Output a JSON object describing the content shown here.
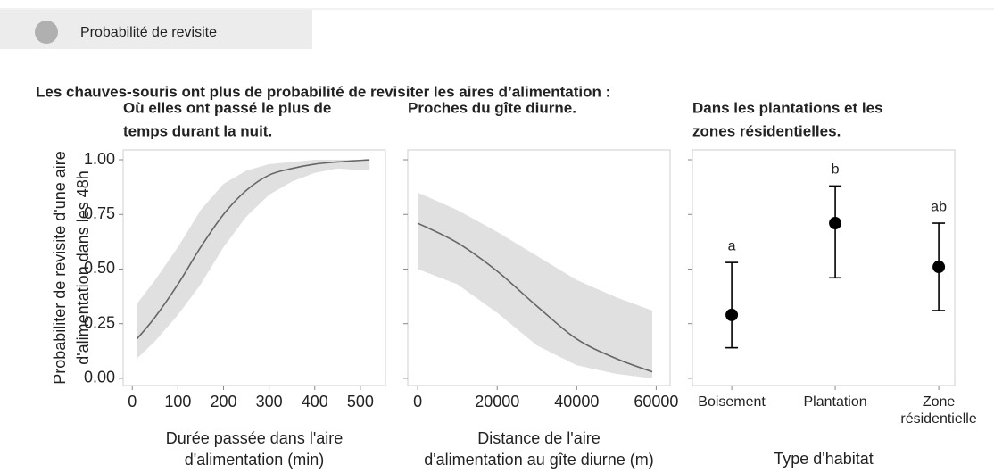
{
  "header": {
    "title": "Probabilité de revisite"
  },
  "subtitle": "Les chauves-souris ont plus de probabilité de revisiter les aires d’alimentation :",
  "chart_data": [
    {
      "type": "line",
      "title": [
        "Où elles ont passé le plus de",
        "temps durant la nuit."
      ],
      "ylabel": [
        "Probabiliter de revisite d'une aire",
        "d'alimentation dans les 48h"
      ],
      "xlabel": [
        "Durée passée dans l'aire",
        "d'alimentation (min)"
      ],
      "x": [
        10,
        50,
        100,
        150,
        200,
        250,
        300,
        350,
        400,
        450,
        520
      ],
      "values": [
        0.18,
        0.28,
        0.43,
        0.6,
        0.75,
        0.86,
        0.93,
        0.96,
        0.98,
        0.99,
        1.0
      ],
      "lower": [
        0.09,
        0.17,
        0.29,
        0.43,
        0.6,
        0.74,
        0.84,
        0.9,
        0.94,
        0.96,
        0.95
      ],
      "upper": [
        0.34,
        0.45,
        0.6,
        0.77,
        0.89,
        0.95,
        0.98,
        0.99,
        1.0,
        1.0,
        1.0
      ],
      "color": "#666666",
      "band_color": "#e0e0e0",
      "xlim": [
        -20,
        555
      ],
      "xticks": [
        0,
        100,
        200,
        300,
        400,
        500
      ],
      "ylim": [
        -0.033,
        1.045
      ],
      "yticks": [
        {
          "value": 0,
          "label": "0.00"
        },
        {
          "value": 0.25,
          "label": "0.25"
        },
        {
          "value": 0.5,
          "label": "0.50"
        },
        {
          "value": 0.75,
          "label": "0.75"
        },
        {
          "value": 1,
          "label": "1.00"
        }
      ]
    },
    {
      "type": "line",
      "title": [
        "Proches du gîte diurne."
      ],
      "xlabel": [
        "Distance de l'aire",
        "d'alimentation au gîte diurne (m)"
      ],
      "x": [
        0,
        10000,
        20000,
        30000,
        40000,
        50000,
        59000
      ],
      "values": [
        0.71,
        0.62,
        0.49,
        0.33,
        0.18,
        0.09,
        0.03
      ],
      "lower": [
        0.5,
        0.43,
        0.3,
        0.15,
        0.06,
        0.02,
        0.0
      ],
      "upper": [
        0.85,
        0.77,
        0.67,
        0.56,
        0.45,
        0.37,
        0.31
      ],
      "color": "#666666",
      "band_color": "#e0e0e0",
      "xlim": [
        -2500,
        63500
      ],
      "xticks": [
        0,
        20000,
        40000,
        60000
      ],
      "ylim": [
        -0.033,
        1.045
      ],
      "yticks": [
        0,
        0.25,
        0.5,
        0.75,
        1
      ]
    },
    {
      "type": "errorbar",
      "title": [
        "Dans les plantations et les",
        "zones résidentielles."
      ],
      "xlabel": [
        "Type d'habitat"
      ],
      "categories": [
        "Boisement",
        "Plantation",
        "Zone résidentielle"
      ],
      "values": [
        0.29,
        0.71,
        0.51
      ],
      "lower": [
        0.14,
        0.46,
        0.31
      ],
      "upper": [
        0.53,
        0.88,
        0.71
      ],
      "annotations": [
        "a",
        "b",
        "ab"
      ],
      "color": "#000000",
      "ylim": [
        -0.033,
        1.045
      ],
      "yticks": [
        0,
        0.25,
        0.5,
        0.75,
        1
      ]
    }
  ]
}
